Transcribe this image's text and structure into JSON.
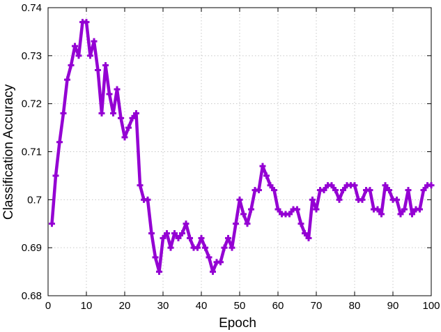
{
  "chart_data": {
    "type": "line",
    "xlabel": "Epoch",
    "ylabel": "Classification Accuracy",
    "xlim": [
      0,
      100
    ],
    "ylim": [
      0.68,
      0.74
    ],
    "x_ticks": [
      "0",
      "10",
      "20",
      "30",
      "40",
      "50",
      "60",
      "70",
      "80",
      "90",
      "100"
    ],
    "y_ticks": [
      "0.68",
      "0.69",
      "0.7",
      "0.71",
      "0.72",
      "0.73",
      "0.74"
    ],
    "grid": true,
    "series": [
      {
        "color": "#9400d3",
        "marker": "plus",
        "x": [
          1,
          2,
          3,
          4,
          5,
          6,
          7,
          8,
          9,
          10,
          11,
          12,
          13,
          14,
          15,
          16,
          17,
          18,
          19,
          20,
          21,
          22,
          23,
          24,
          25,
          26,
          27,
          28,
          29,
          30,
          31,
          32,
          33,
          34,
          35,
          36,
          37,
          38,
          39,
          40,
          41,
          42,
          43,
          44,
          45,
          46,
          47,
          48,
          49,
          50,
          51,
          52,
          53,
          54,
          55,
          56,
          57,
          58,
          59,
          60,
          61,
          62,
          63,
          64,
          65,
          66,
          67,
          68,
          69,
          70,
          71,
          72,
          73,
          74,
          75,
          76,
          77,
          78,
          79,
          80,
          81,
          82,
          83,
          84,
          85,
          86,
          87,
          88,
          89,
          90,
          91,
          92,
          93,
          94,
          95,
          96,
          97,
          98,
          99,
          100
        ],
        "values": [
          0.695,
          0.705,
          0.712,
          0.718,
          0.725,
          0.728,
          0.732,
          0.73,
          0.737,
          0.737,
          0.73,
          0.733,
          0.727,
          0.718,
          0.728,
          0.722,
          0.718,
          0.723,
          0.717,
          0.713,
          0.715,
          0.717,
          0.718,
          0.703,
          0.7,
          0.7,
          0.693,
          0.688,
          0.685,
          0.692,
          0.693,
          0.69,
          0.693,
          0.692,
          0.693,
          0.695,
          0.692,
          0.69,
          0.69,
          0.692,
          0.69,
          0.688,
          0.685,
          0.687,
          0.687,
          0.69,
          0.692,
          0.69,
          0.695,
          0.7,
          0.697,
          0.695,
          0.698,
          0.702,
          0.702,
          0.707,
          0.705,
          0.703,
          0.702,
          0.698,
          0.697,
          0.697,
          0.697,
          0.698,
          0.698,
          0.695,
          0.693,
          0.692,
          0.7,
          0.698,
          0.702,
          0.702,
          0.703,
          0.703,
          0.702,
          0.7,
          0.702,
          0.703,
          0.703,
          0.703,
          0.7,
          0.7,
          0.702,
          0.702,
          0.698,
          0.698,
          0.697,
          0.703,
          0.702,
          0.7,
          0.7,
          0.697,
          0.698,
          0.702,
          0.697,
          0.698,
          0.698,
          0.702,
          0.703,
          0.703
        ]
      }
    ]
  }
}
